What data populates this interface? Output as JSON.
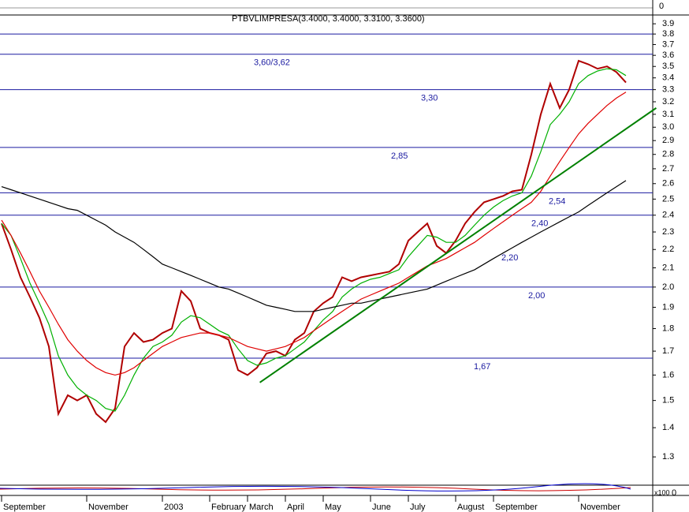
{
  "chart_data": {
    "type": "line",
    "log": true,
    "title": "PTBVLIMPRESA(3.4000, 3.4000, 3.3100, 3.3600)",
    "categories": [
      "September",
      null,
      null,
      null,
      null,
      null,
      null,
      null,
      null,
      "November",
      null,
      null,
      null,
      null,
      null,
      null,
      null,
      "2003",
      null,
      null,
      null,
      null,
      "February",
      null,
      null,
      null,
      "March",
      null,
      null,
      null,
      "April",
      null,
      null,
      null,
      "May",
      null,
      null,
      null,
      null,
      "June",
      null,
      null,
      null,
      "July",
      null,
      null,
      null,
      null,
      "August",
      null,
      null,
      null,
      "September",
      null,
      null,
      null,
      null,
      null,
      null,
      null,
      null,
      "November",
      null,
      null,
      null,
      null,
      null
    ],
    "series": [
      {
        "name": "Price",
        "color": "#b00000",
        "values": [
          2.35,
          2.2,
          2.05,
          1.95,
          1.85,
          1.72,
          1.45,
          1.52,
          1.5,
          1.52,
          1.45,
          1.42,
          1.47,
          1.72,
          1.78,
          1.74,
          1.75,
          1.78,
          1.8,
          1.98,
          1.93,
          1.8,
          1.78,
          1.77,
          1.75,
          1.62,
          1.6,
          1.63,
          1.69,
          1.7,
          1.68,
          1.75,
          1.78,
          1.88,
          1.92,
          1.95,
          2.05,
          2.03,
          2.05,
          2.06,
          2.07,
          2.08,
          2.12,
          2.25,
          2.3,
          2.35,
          2.22,
          2.18,
          2.25,
          2.35,
          2.42,
          2.48,
          2.5,
          2.52,
          2.55,
          2.56,
          2.8,
          3.1,
          3.35,
          3.15,
          3.3,
          3.55,
          3.52,
          3.48,
          3.5,
          3.45,
          3.36
        ]
      },
      {
        "name": "MA short",
        "color": "#00b000",
        "values": [
          2.35,
          2.28,
          2.15,
          2.02,
          1.92,
          1.82,
          1.68,
          1.6,
          1.55,
          1.52,
          1.5,
          1.47,
          1.46,
          1.52,
          1.6,
          1.67,
          1.72,
          1.74,
          1.77,
          1.83,
          1.86,
          1.85,
          1.82,
          1.79,
          1.77,
          1.71,
          1.66,
          1.64,
          1.65,
          1.67,
          1.68,
          1.71,
          1.74,
          1.79,
          1.84,
          1.88,
          1.95,
          1.99,
          2.02,
          2.04,
          2.05,
          2.07,
          2.09,
          2.16,
          2.22,
          2.28,
          2.27,
          2.24,
          2.24,
          2.28,
          2.34,
          2.4,
          2.45,
          2.49,
          2.52,
          2.54,
          2.65,
          2.82,
          3.02,
          3.1,
          3.2,
          3.35,
          3.42,
          3.46,
          3.48,
          3.47,
          3.42
        ]
      },
      {
        "name": "MA medium",
        "color": "#e00000",
        "values": [
          2.37,
          2.28,
          2.18,
          2.08,
          1.98,
          1.9,
          1.82,
          1.75,
          1.7,
          1.66,
          1.63,
          1.61,
          1.6,
          1.61,
          1.63,
          1.66,
          1.69,
          1.72,
          1.74,
          1.76,
          1.77,
          1.78,
          1.78,
          1.77,
          1.76,
          1.74,
          1.72,
          1.71,
          1.7,
          1.71,
          1.72,
          1.74,
          1.76,
          1.79,
          1.82,
          1.85,
          1.88,
          1.91,
          1.94,
          1.96,
          1.98,
          2.0,
          2.02,
          2.05,
          2.08,
          2.11,
          2.13,
          2.15,
          2.18,
          2.21,
          2.24,
          2.28,
          2.32,
          2.36,
          2.4,
          2.44,
          2.48,
          2.55,
          2.65,
          2.75,
          2.85,
          2.95,
          3.03,
          3.1,
          3.17,
          3.23,
          3.28
        ]
      },
      {
        "name": "MA long",
        "color": "#000000",
        "values": [
          2.58,
          2.56,
          2.54,
          2.52,
          2.5,
          2.48,
          2.46,
          2.44,
          2.43,
          2.4,
          2.37,
          2.34,
          2.3,
          2.27,
          2.24,
          2.2,
          2.16,
          2.12,
          2.1,
          2.08,
          2.06,
          2.04,
          2.02,
          2.0,
          1.99,
          1.97,
          1.95,
          1.93,
          1.91,
          1.9,
          1.89,
          1.88,
          1.88,
          1.88,
          1.89,
          1.9,
          1.91,
          1.92,
          1.92,
          1.93,
          1.94,
          1.95,
          1.96,
          1.97,
          1.98,
          1.99,
          2.01,
          2.03,
          2.05,
          2.07,
          2.09,
          2.12,
          2.15,
          2.18,
          2.21,
          2.24,
          2.27,
          2.3,
          2.33,
          2.36,
          2.39,
          2.42,
          2.46,
          2.5,
          2.54,
          2.58,
          2.62
        ]
      }
    ],
    "ylim": [
      1.21,
      3.98
    ],
    "yticks": [
      1.3,
      1.4,
      1.5,
      1.6,
      1.7,
      1.8,
      1.9,
      {
        "value": 2,
        "label": "2.0"
      },
      2.1,
      2.2,
      2.3,
      2.4,
      2.5,
      2.6,
      2.7,
      2.8,
      2.9,
      {
        "value": 3,
        "label": "3.0"
      },
      3.1,
      3.2,
      3.3,
      3.4,
      3.5,
      3.6,
      3.7,
      3.8,
      3.9
    ],
    "levels": [
      3.8,
      3.61,
      3.3,
      2.85,
      2.54,
      2.4,
      2.0,
      1.67
    ],
    "level_color": "#1a1aa0",
    "annotations": [
      {
        "value": 3.61,
        "label": "3,60/3,62"
      },
      {
        "value": 3.3,
        "label": "3,30"
      },
      {
        "value": 2.85,
        "label": "2,85"
      },
      {
        "value": 2.54,
        "label": "2,54"
      },
      {
        "value": 2.4,
        "label": "2,40"
      },
      {
        "value": 2.2,
        "label": "2,20"
      },
      {
        "value": 2.0,
        "label": "2,00"
      },
      {
        "value": 1.67,
        "label": "1,67"
      }
    ],
    "trendline": {
      "color": "#008000",
      "x": [
        27.3,
        69.2
      ],
      "y": [
        1.57,
        3.15
      ]
    },
    "top_value": 0,
    "macd_scale": "x100",
    "macd_value": 0
  }
}
